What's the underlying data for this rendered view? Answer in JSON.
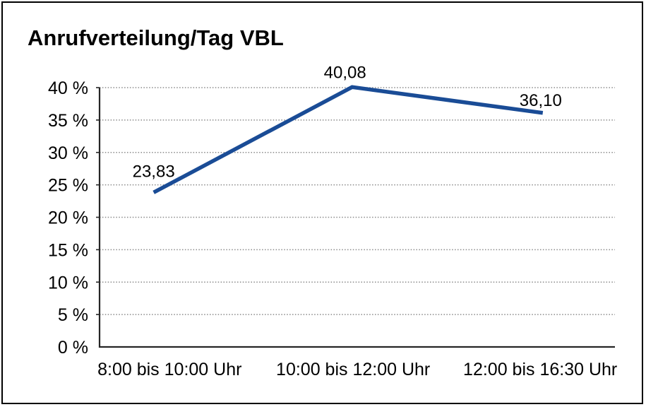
{
  "title": "Anrufverteilung/Tag VBL",
  "chart_data": {
    "type": "line",
    "title": "Anrufverteilung/Tag VBL",
    "categories": [
      "8:00 bis 10:00 Uhr",
      "10:00 bis 12:00 Uhr",
      "12:00 bis 16:30 Uhr"
    ],
    "values": [
      23.83,
      40.08,
      36.1
    ],
    "value_labels": [
      "23,83",
      "40,08",
      "36,10"
    ],
    "xlabel": "",
    "ylabel": "",
    "ylim": [
      0,
      40
    ],
    "ytick_step": 5,
    "ytick_suffix": " %",
    "ytick_labels": [
      "0 %",
      "5 %",
      "10 %",
      "15 %",
      "20 %",
      "25 %",
      "30 %",
      "35 %",
      "40 %"
    ],
    "grid": "horizontal-dotted",
    "legend": "none"
  },
  "colors": {
    "line": "#1A4C96",
    "grid": "#8a8a8a",
    "axis": "#262626",
    "text": "#000000",
    "border": "#000000",
    "background": "#ffffff"
  }
}
